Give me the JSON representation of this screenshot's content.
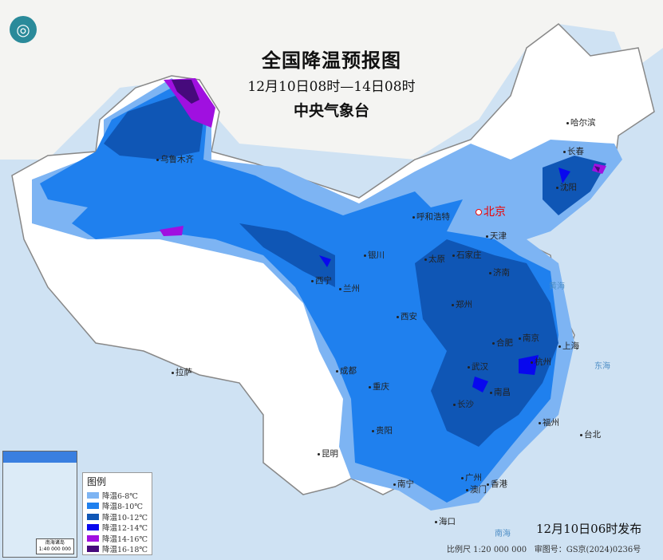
{
  "header": {
    "title": "全国降温预报图",
    "period": "12月10日08时—14日08时",
    "issuer": "中央气象台"
  },
  "legend": {
    "title": "图例",
    "items": [
      {
        "label": "降温6-8℃",
        "color": "#7db4f3"
      },
      {
        "label": "降温8-10℃",
        "color": "#1f80ee"
      },
      {
        "label": "降温10-12℃",
        "color": "#0f56b5"
      },
      {
        "label": "降温12-14℃",
        "color": "#0808ee"
      },
      {
        "label": "降温14-16℃",
        "color": "#a010e0"
      },
      {
        "label": "降温16-18℃",
        "color": "#460a7c"
      }
    ]
  },
  "cities": [
    "乌鲁木齐",
    "哈尔滨",
    "长春",
    "沈阳",
    "北京",
    "天津",
    "呼和浩特",
    "银川",
    "太原",
    "石家庄",
    "济南",
    "西宁",
    "兰州",
    "西安",
    "郑州",
    "合肥",
    "南京",
    "上海",
    "杭州",
    "武汉",
    "南昌",
    "长沙",
    "成都",
    "重庆",
    "拉萨",
    "贵阳",
    "福州",
    "台北",
    "昆明",
    "南宁",
    "广州",
    "澳门",
    "香港",
    "海口"
  ],
  "seas": [
    "黄海",
    "东海",
    "南海"
  ],
  "inset": {
    "title": "南海诸岛",
    "scale": "1:40 000 000"
  },
  "footer": {
    "issued": "12月10日06时发布",
    "scale": "比例尺 1:20 000 000",
    "review": "审图号：GS京(2024)0236号"
  }
}
